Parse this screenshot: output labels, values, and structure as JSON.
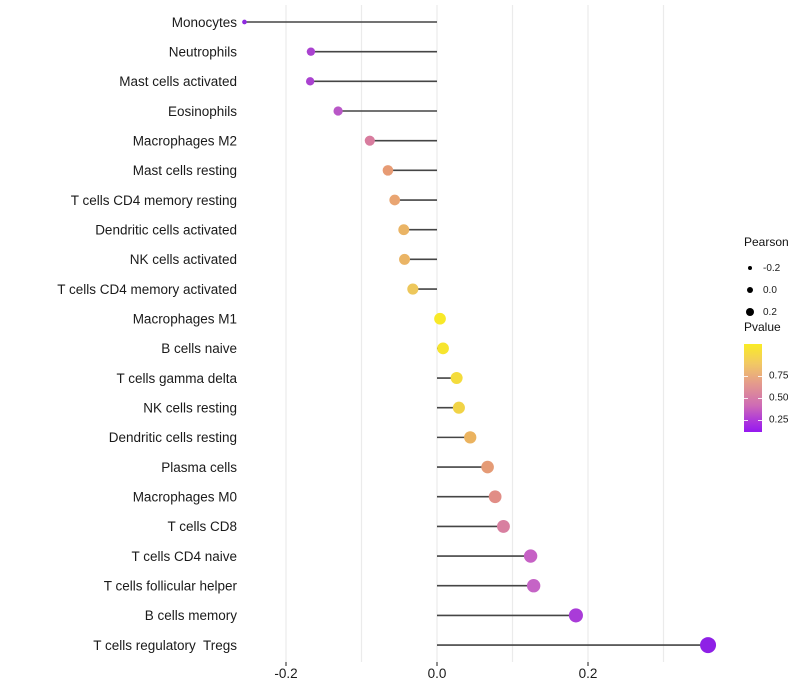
{
  "chart_data": {
    "type": "scatter",
    "variant": "lollipop",
    "title": "",
    "xlabel": "",
    "ylabel": "",
    "xlim": [
      -0.28,
      0.385
    ],
    "grid": "vertical-only",
    "baseline": 0.0,
    "x_ticks": [
      {
        "value": -0.2,
        "label": "-0.2"
      },
      {
        "value": 0.0,
        "label": "0.0"
      },
      {
        "value": 0.2,
        "label": "0.2"
      }
    ],
    "gridline_values": [
      -0.2,
      -0.1,
      0.0,
      0.1,
      0.2,
      0.3
    ],
    "rows": [
      {
        "label": "Monocytes",
        "pearson": -0.255,
        "color": "#8F2BE0"
      },
      {
        "label": "Neutrophils",
        "pearson": -0.167,
        "color": "#AA42D0"
      },
      {
        "label": "Mast cells activated",
        "pearson": -0.168,
        "color": "#AA42D0"
      },
      {
        "label": "Eosinophils",
        "pearson": -0.131,
        "color": "#B957C7"
      },
      {
        "label": "Macrophages M2",
        "pearson": -0.089,
        "color": "#D87C9E"
      },
      {
        "label": "Mast cells resting",
        "pearson": -0.065,
        "color": "#E79B74"
      },
      {
        "label": "T cells CD4 memory resting",
        "pearson": -0.056,
        "color": "#E9A572"
      },
      {
        "label": "Dendritic cells activated",
        "pearson": -0.044,
        "color": "#EAB465"
      },
      {
        "label": "NK cells activated",
        "pearson": -0.043,
        "color": "#EAB465"
      },
      {
        "label": "T cells CD4 memory activated",
        "pearson": -0.032,
        "color": "#EDC75B"
      },
      {
        "label": "Macrophages M1",
        "pearson": 0.004,
        "color": "#F8E928"
      },
      {
        "label": "B cells naive",
        "pearson": 0.008,
        "color": "#F7E52E"
      },
      {
        "label": "T cells gamma delta",
        "pearson": 0.026,
        "color": "#F4DC3C"
      },
      {
        "label": "NK cells resting",
        "pearson": 0.029,
        "color": "#F1D346"
      },
      {
        "label": "Dendritic cells resting",
        "pearson": 0.044,
        "color": "#EBB35F"
      },
      {
        "label": "Plasma cells",
        "pearson": 0.067,
        "color": "#E59B76"
      },
      {
        "label": "Macrophages M0",
        "pearson": 0.077,
        "color": "#E18D86"
      },
      {
        "label": "T cells CD8",
        "pearson": 0.088,
        "color": "#D87FA0"
      },
      {
        "label": "T cells CD4 naive",
        "pearson": 0.124,
        "color": "#C661C5"
      },
      {
        "label": "T cells follicular helper",
        "pearson": 0.128,
        "color": "#C564C6"
      },
      {
        "label": "B cells memory",
        "pearson": 0.184,
        "color": "#A93BD8"
      },
      {
        "label": "T cells regulatory  Tregs",
        "pearson": 0.359,
        "color": "#8E20E6"
      }
    ]
  },
  "legend": {
    "pearson": {
      "title": "Pearson",
      "items": [
        {
          "label": "-0.2",
          "value": -0.2
        },
        {
          "label": "0.0",
          "value": 0.0
        },
        {
          "label": "0.2",
          "value": 0.2
        }
      ]
    },
    "pvalue": {
      "title": "Pvalue",
      "ticks": [
        {
          "label": "0.75",
          "t": 0.75
        },
        {
          "label": "0.50",
          "t": 0.5
        },
        {
          "label": "0.25",
          "t": 0.25
        }
      ],
      "gradient_stops": [
        {
          "t": 0.0,
          "color": "#9518F0"
        },
        {
          "t": 0.12,
          "color": "#AC35DC"
        },
        {
          "t": 0.3,
          "color": "#CE6BB5"
        },
        {
          "t": 0.55,
          "color": "#E49A8C"
        },
        {
          "t": 0.78,
          "color": "#F2C963"
        },
        {
          "t": 1.0,
          "color": "#FAEC25"
        }
      ]
    }
  },
  "colors": {
    "background": "#FFFFFF",
    "gridline": "#EBEBEB",
    "stem": "#454545",
    "axis_tick": "#333333",
    "text": "#1A1A1A"
  }
}
